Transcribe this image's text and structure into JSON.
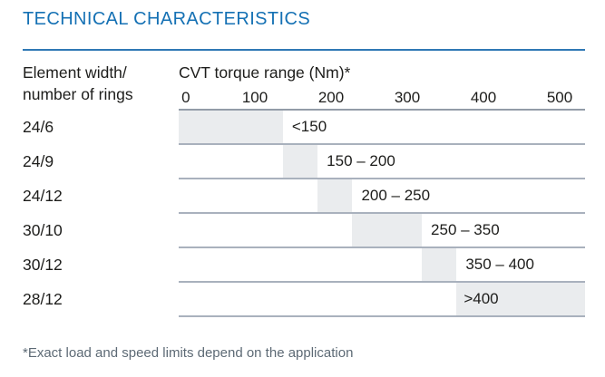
{
  "page": {
    "title": "TECHNICAL CHARACTERISTICS",
    "footnote": "*Exact load and speed limits depend on the application"
  },
  "colors": {
    "title_blue": "#1571b4",
    "rule_blue": "#2f78b5",
    "bar_gray": "#eaecee",
    "row_line": "#a9b1bd",
    "header_line": "#939ca8",
    "text": "#1d1d1b",
    "footnote_gray": "#5d6a75"
  },
  "chart_data": {
    "type": "bar",
    "orientation": "horizontal",
    "title": "TECHNICAL CHARACTERISTICS",
    "left_header_line1": "Element width/",
    "left_header_line2": "number of rings",
    "axis_title": "CVT torque range (Nm)*",
    "axis_ticks": [
      0,
      100,
      200,
      300,
      400,
      500
    ],
    "axis_max": 585,
    "grid": false,
    "categories": [
      "24/6",
      "24/9",
      "24/12",
      "30/10",
      "30/12",
      "28/12"
    ],
    "rows": [
      {
        "label": "24/6",
        "start": 0,
        "end": 150,
        "range_label": "<150"
      },
      {
        "label": "24/9",
        "start": 150,
        "end": 200,
        "range_label": "150 – 200"
      },
      {
        "label": "24/12",
        "start": 200,
        "end": 250,
        "range_label": "200 – 250"
      },
      {
        "label": "30/10",
        "start": 250,
        "end": 350,
        "range_label": "250 – 350"
      },
      {
        "label": "30/12",
        "start": 350,
        "end": 400,
        "range_label": "350 – 400"
      },
      {
        "label": "28/12",
        "start": 400,
        "end": 585,
        "range_label": ">400",
        "label_inside": true
      }
    ]
  }
}
